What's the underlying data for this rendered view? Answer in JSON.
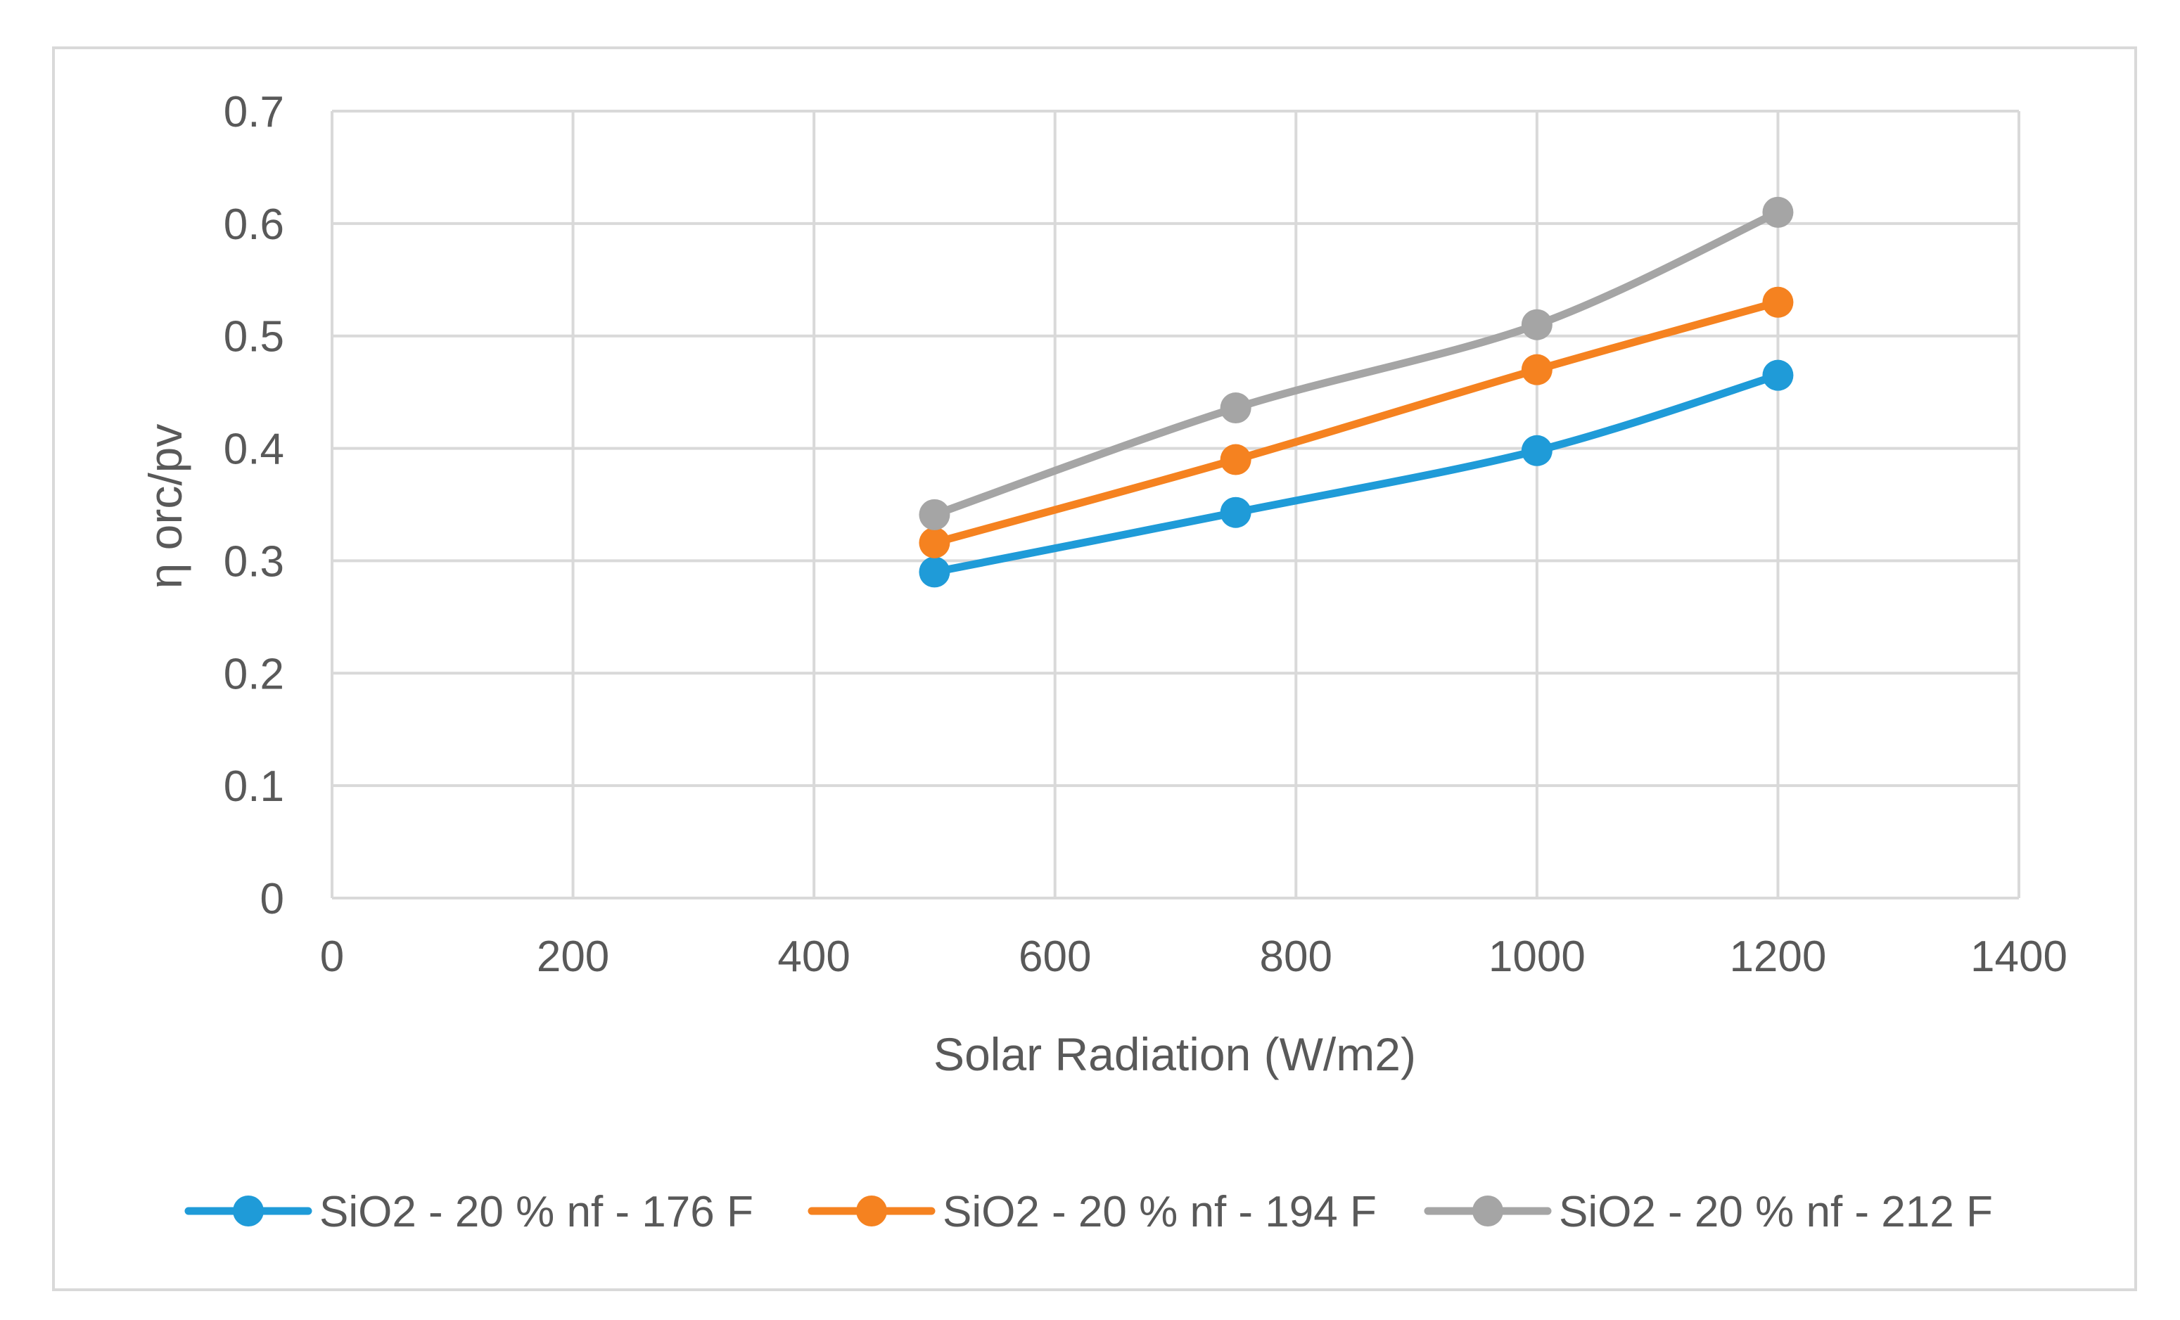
{
  "chart_data": {
    "type": "line",
    "title": "",
    "xlabel": "Solar Radiation (W/m2)",
    "ylabel": "η orc/pv",
    "xlim": [
      0,
      1400
    ],
    "ylim": [
      0,
      0.7
    ],
    "xticks": [
      0,
      200,
      400,
      600,
      800,
      1000,
      1200,
      1400
    ],
    "yticks": [
      0,
      0.1,
      0.2,
      0.3,
      0.4,
      0.5,
      0.6,
      0.7
    ],
    "xtick_labels": [
      "0",
      "200",
      "400",
      "600",
      "800",
      "1000",
      "1200",
      "1400"
    ],
    "ytick_labels": [
      "0",
      "0.1",
      "0.2",
      "0.3",
      "0.4",
      "0.5",
      "0.6",
      "0.7"
    ],
    "grid": true,
    "legend_position": "bottom",
    "series": [
      {
        "name": "SiO2 - 20 % nf - 176 F",
        "color": "#1f9bd8",
        "x": [
          500,
          750,
          1000,
          1200
        ],
        "y": [
          0.29,
          0.343,
          0.398,
          0.465
        ]
      },
      {
        "name": "SiO2 - 20 % nf - 194 F",
        "color": "#f58220",
        "x": [
          500,
          750,
          1000,
          1200
        ],
        "y": [
          0.316,
          0.39,
          0.47,
          0.53
        ]
      },
      {
        "name": "SiO2 - 20 % nf - 212 F",
        "color": "#a5a5a5",
        "x": [
          500,
          750,
          1000,
          1200
        ],
        "y": [
          0.341,
          0.436,
          0.51,
          0.61
        ]
      }
    ],
    "colors": {
      "grid": "#d9d9d9",
      "text": "#595959"
    }
  }
}
